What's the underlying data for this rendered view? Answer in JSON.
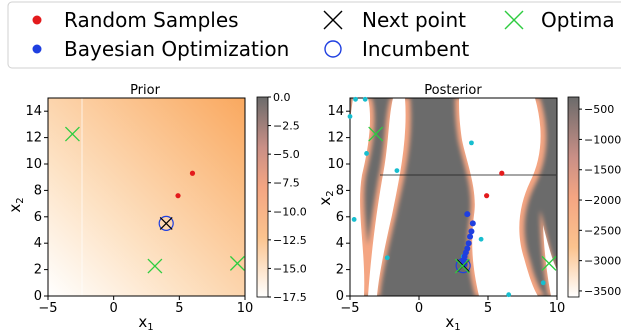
{
  "legend": {
    "items": [
      {
        "label": "Random Samples",
        "marker": "dot",
        "color": "#e31a1c"
      },
      {
        "label": "Bayesian Optimization",
        "marker": "dot",
        "color": "#1f3fe0"
      },
      {
        "label": "Next point",
        "marker": "x",
        "color": "#000000"
      },
      {
        "label": "Incumbent",
        "marker": "circle",
        "color": "#1f3fe0"
      },
      {
        "label": "Optima",
        "marker": "x",
        "color": "#2ecc40"
      }
    ]
  },
  "chart_data": [
    {
      "type": "heatmap",
      "title": "Prior",
      "xlabel": "x₁",
      "ylabel": "x₂",
      "xlim": [
        -5,
        10
      ],
      "ylim": [
        0,
        15
      ],
      "xticks": [
        "−5",
        "0",
        "5",
        "10"
      ],
      "yticks": [
        "0",
        "2",
        "4",
        "6",
        "8",
        "10",
        "12",
        "14"
      ],
      "colorbar": {
        "range": [
          -17.5,
          0
        ],
        "ticks": [
          "0.0",
          "−2.5",
          "−5.0",
          "−7.5",
          "−10.0",
          "−12.5",
          "−15.0",
          "−17.5"
        ]
      },
      "random_samples": [
        [
          6.0,
          9.3
        ],
        [
          4.9,
          7.6
        ]
      ],
      "bayesian_optimization": [],
      "next_point": [
        4.0,
        5.5
      ],
      "incumbent": [
        4.0,
        5.5
      ],
      "optima": [
        [
          -3.14,
          12.27
        ],
        [
          3.14,
          2.27
        ],
        [
          9.42,
          2.47
        ]
      ]
    },
    {
      "type": "heatmap",
      "title": "Posterior",
      "xlabel": "x₁",
      "ylabel": "x₂",
      "xlim": [
        -5,
        10
      ],
      "ylim": [
        0,
        15
      ],
      "xticks": [
        "−5",
        "0",
        "5",
        "10"
      ],
      "yticks": [
        "0",
        "2",
        "4",
        "6",
        "8",
        "10",
        "12",
        "14"
      ],
      "colorbar": {
        "range": [
          -3600,
          -300
        ],
        "ticks": [
          "−500",
          "−1000",
          "−1500",
          "−2000",
          "−2500",
          "−3000",
          "−3500"
        ]
      },
      "random_samples": [
        [
          6.0,
          9.3
        ],
        [
          4.9,
          7.6
        ]
      ],
      "bayesian_optimization": [
        [
          3.9,
          5.5
        ],
        [
          3.8,
          4.9
        ],
        [
          3.7,
          4.5
        ],
        [
          3.6,
          4.0
        ],
        [
          3.5,
          3.6
        ],
        [
          3.4,
          3.3
        ],
        [
          3.3,
          3.0
        ],
        [
          3.2,
          2.7
        ],
        [
          3.3,
          2.4
        ],
        [
          3.5,
          6.2
        ],
        [
          3.2,
          2.4
        ]
      ],
      "other_samples": [
        [
          -4.7,
          5.8
        ],
        [
          -1.6,
          9.5
        ],
        [
          3.8,
          11.6
        ],
        [
          4.5,
          4.3
        ],
        [
          9.0,
          1.0
        ],
        [
          6.5,
          0.1
        ],
        [
          -2.3,
          2.9
        ],
        [
          -5.0,
          13.6
        ],
        [
          -3.8,
          10.8
        ],
        [
          3.2,
          3.0
        ],
        [
          -4.6,
          14.9
        ],
        [
          -3.9,
          14.9
        ]
      ],
      "next_point": [
        3.2,
        2.3
      ],
      "incumbent": [
        3.2,
        2.3
      ],
      "optima": [
        [
          -3.14,
          12.27
        ],
        [
          3.14,
          2.27
        ],
        [
          9.42,
          2.47
        ]
      ]
    }
  ]
}
